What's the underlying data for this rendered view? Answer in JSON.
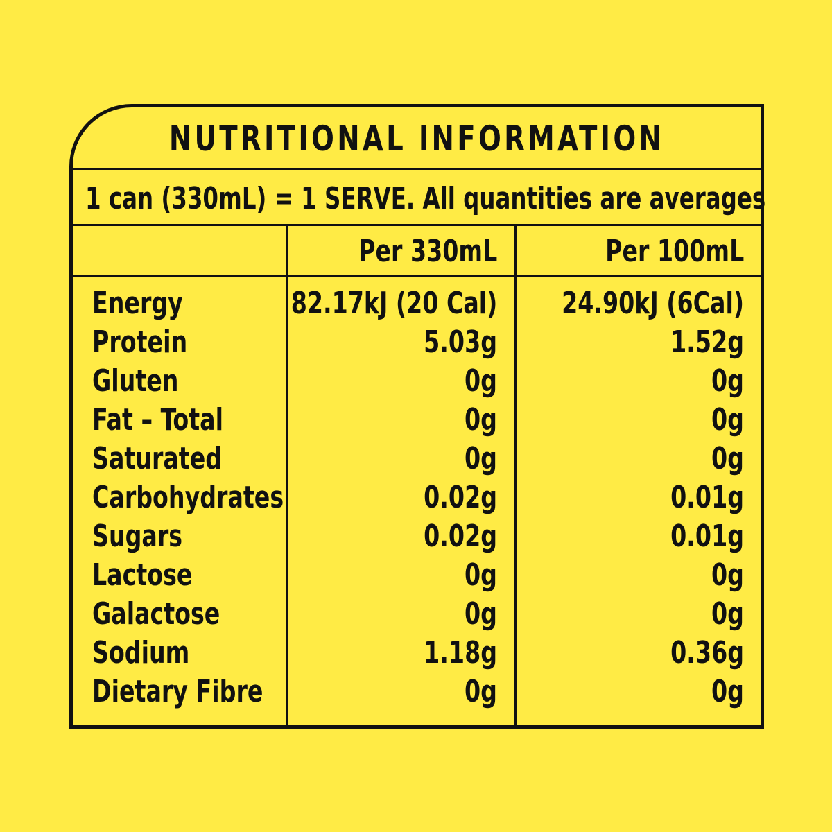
{
  "title": "NUTRITIONAL INFORMATION",
  "serving_note": "1 can (330mL) = 1 SERVE. All quantities are averages",
  "columns": {
    "per_serve": "Per 330mL",
    "per_100": "Per 100mL"
  },
  "colors": {
    "background": "#FFEB45",
    "ink": "#111111"
  },
  "rows": [
    {
      "name": "Energy",
      "per_serve": "82.17kJ (20 Cal)",
      "per_100": "24.90kJ (6Cal)"
    },
    {
      "name": "Protein",
      "per_serve": "5.03g",
      "per_100": "1.52g"
    },
    {
      "name": "Gluten",
      "per_serve": "0g",
      "per_100": "0g"
    },
    {
      "name": "Fat – Total",
      "per_serve": "0g",
      "per_100": "0g"
    },
    {
      "name": "Saturated",
      "per_serve": "0g",
      "per_100": "0g"
    },
    {
      "name": "Carbohydrates",
      "per_serve": "0.02g",
      "per_100": "0.01g"
    },
    {
      "name": "Sugars",
      "per_serve": "0.02g",
      "per_100": "0.01g"
    },
    {
      "name": "Lactose",
      "per_serve": "0g",
      "per_100": "0g"
    },
    {
      "name": "Galactose",
      "per_serve": "0g",
      "per_100": "0g"
    },
    {
      "name": "Sodium",
      "per_serve": "1.18g",
      "per_100": "0.36g"
    },
    {
      "name": "Dietary Fibre",
      "per_serve": "0g",
      "per_100": "0g"
    }
  ]
}
